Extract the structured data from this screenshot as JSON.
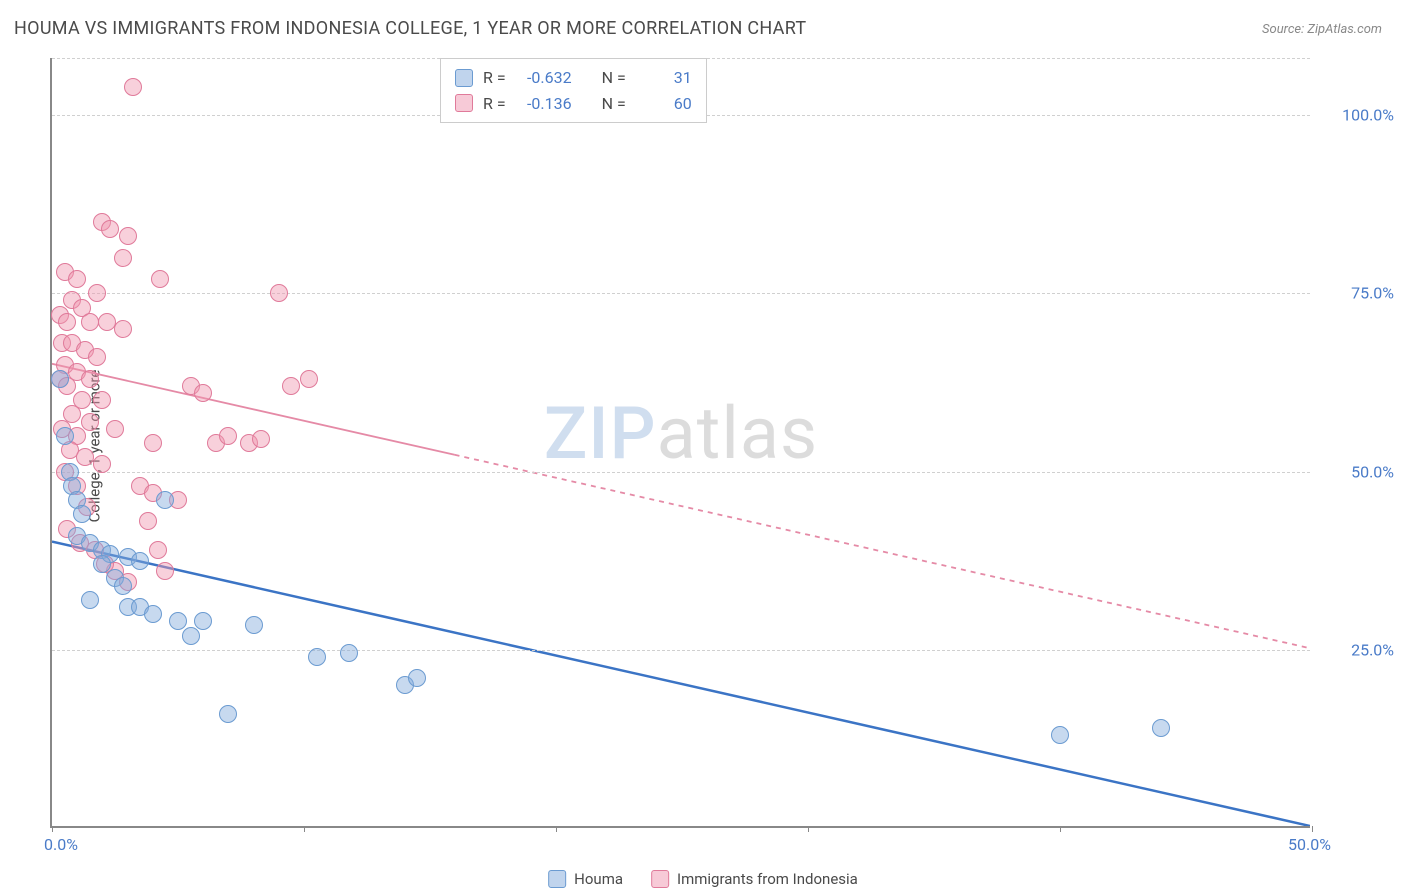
{
  "title": "HOUMA VS IMMIGRANTS FROM INDONESIA COLLEGE, 1 YEAR OR MORE CORRELATION CHART",
  "source": "Source: ZipAtlas.com",
  "y_axis_label": "College, 1 year or more",
  "watermark_a": "ZIP",
  "watermark_b": "atlas",
  "chart": {
    "type": "scatter",
    "xlim": [
      0,
      50
    ],
    "ylim": [
      0,
      108
    ],
    "x_ticks": [
      0,
      10,
      20,
      30,
      40,
      50
    ],
    "x_tick_labels": [
      "0.0%",
      "",
      "",
      "",
      "",
      "50.0%"
    ],
    "y_gridlines": [
      25,
      50,
      75,
      100,
      108
    ],
    "y_tick_labels": {
      "25": "25.0%",
      "50": "50.0%",
      "75": "75.0%",
      "100": "100.0%"
    },
    "background_color": "#ffffff",
    "grid_color": "#d0d0d0",
    "axis_color": "#888888",
    "point_radius": 9,
    "series": [
      {
        "name": "Houma",
        "color_fill": "rgba(130,170,220,0.45)",
        "color_stroke": "#6b9bd1",
        "R": "-0.632",
        "N": "31",
        "trend": {
          "x1": 0,
          "y1": 40,
          "x2": 50,
          "y2": 0,
          "dash": "none",
          "stroke": "#3b74c5",
          "stroke_width": 2.5
        },
        "points": [
          [
            0.3,
            63
          ],
          [
            0.5,
            55
          ],
          [
            0.7,
            50
          ],
          [
            0.8,
            48
          ],
          [
            1.0,
            46
          ],
          [
            1.2,
            44
          ],
          [
            1.0,
            41
          ],
          [
            1.5,
            40
          ],
          [
            2.0,
            39
          ],
          [
            2.3,
            38.5
          ],
          [
            2.0,
            37
          ],
          [
            3.0,
            38
          ],
          [
            3.5,
            37.5
          ],
          [
            2.5,
            35
          ],
          [
            2.8,
            34
          ],
          [
            1.5,
            32
          ],
          [
            3.0,
            31
          ],
          [
            3.5,
            31
          ],
          [
            4.0,
            30
          ],
          [
            5.0,
            29
          ],
          [
            6.0,
            29
          ],
          [
            8.0,
            28.5
          ],
          [
            4.5,
            46
          ],
          [
            5.5,
            27
          ],
          [
            7.0,
            16
          ],
          [
            10.5,
            24
          ],
          [
            11.8,
            24.5
          ],
          [
            14.0,
            20
          ],
          [
            14.5,
            21
          ],
          [
            40.0,
            13
          ],
          [
            44.0,
            14
          ]
        ]
      },
      {
        "name": "Immigrants from Indonesia",
        "color_fill": "rgba(240,150,175,0.45)",
        "color_stroke": "#e07a9a",
        "R": "-0.136",
        "N": "60",
        "trend": {
          "x1": 0,
          "y1": 65,
          "x2": 50,
          "y2": 25,
          "dash": "5,5",
          "stroke": "#e58aa6",
          "stroke_width": 1.8,
          "solid_until": 16
        },
        "points": [
          [
            3.2,
            104
          ],
          [
            2.0,
            85
          ],
          [
            2.3,
            84
          ],
          [
            3.0,
            83
          ],
          [
            2.8,
            80
          ],
          [
            0.5,
            78
          ],
          [
            1.0,
            77
          ],
          [
            4.3,
            77
          ],
          [
            1.8,
            75
          ],
          [
            0.8,
            74
          ],
          [
            1.2,
            73
          ],
          [
            0.3,
            72
          ],
          [
            0.6,
            71
          ],
          [
            1.5,
            71
          ],
          [
            2.2,
            71
          ],
          [
            2.8,
            70
          ],
          [
            9.0,
            75
          ],
          [
            0.4,
            68
          ],
          [
            0.8,
            68
          ],
          [
            1.3,
            67
          ],
          [
            1.8,
            66
          ],
          [
            0.5,
            65
          ],
          [
            1.0,
            64
          ],
          [
            0.3,
            63
          ],
          [
            1.5,
            63
          ],
          [
            0.6,
            62
          ],
          [
            1.2,
            60
          ],
          [
            2.0,
            60
          ],
          [
            0.8,
            58
          ],
          [
            1.5,
            57
          ],
          [
            0.4,
            56
          ],
          [
            1.0,
            55
          ],
          [
            2.5,
            56
          ],
          [
            5.5,
            62
          ],
          [
            6.0,
            61
          ],
          [
            0.7,
            53
          ],
          [
            1.3,
            52
          ],
          [
            2.0,
            51
          ],
          [
            4.0,
            54
          ],
          [
            9.5,
            62
          ],
          [
            10.2,
            63
          ],
          [
            3.5,
            48
          ],
          [
            4.0,
            47
          ],
          [
            3.8,
            43
          ],
          [
            4.2,
            39
          ],
          [
            5.0,
            46
          ],
          [
            2.5,
            36
          ],
          [
            3.0,
            34.5
          ],
          [
            0.5,
            50
          ],
          [
            1.0,
            48
          ],
          [
            1.4,
            45
          ],
          [
            0.6,
            42
          ],
          [
            1.1,
            40
          ],
          [
            1.7,
            39
          ],
          [
            2.1,
            37
          ],
          [
            6.5,
            54
          ],
          [
            7.0,
            55
          ],
          [
            7.8,
            54
          ],
          [
            8.3,
            54.5
          ],
          [
            4.5,
            36
          ]
        ]
      }
    ]
  },
  "stats_box": {
    "rows": [
      {
        "swatch": "blue",
        "r_label": "R =",
        "r_val": "-0.632",
        "n_label": "N =",
        "n_val": "31"
      },
      {
        "swatch": "pink",
        "r_label": "R =",
        "r_val": "-0.136",
        "n_label": "N =",
        "n_val": "60"
      }
    ]
  },
  "bottom_legend": [
    {
      "swatch": "blue",
      "label": "Houma"
    },
    {
      "swatch": "pink",
      "label": "Immigrants from Indonesia"
    }
  ]
}
